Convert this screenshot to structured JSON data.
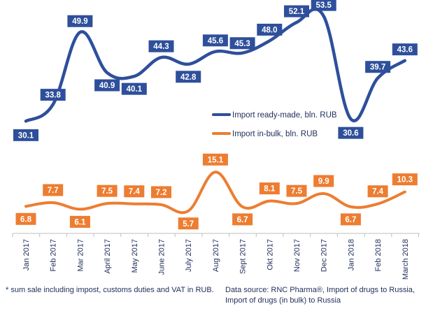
{
  "chart_data": {
    "type": "line",
    "categories": [
      "Jan 2017",
      "Feb 2017",
      "Mar 2017",
      "April 2017",
      "May 2017",
      "June 2017",
      "July 2017",
      "Aug 2017",
      "Sept 2017",
      "Okt 2017",
      "Nov 2017",
      "Dec 2017",
      "Jan 2018",
      "Feb 2018",
      "March 2018"
    ],
    "series": [
      {
        "name": "Import ready-made, bln. RUB",
        "color": "#2e4f9b",
        "values": [
          30.1,
          33.8,
          49.9,
          40.9,
          40.1,
          44.3,
          42.8,
          45.6,
          45.3,
          48.0,
          52.1,
          53.5,
          30.6,
          39.7,
          43.6
        ],
        "labels": [
          "30.1",
          "33.8",
          "49.9",
          "40.9",
          "40.1",
          "44.3",
          "42.8",
          "45.6",
          "45.3",
          "48.0",
          "52.1",
          "53.5",
          "30.6",
          "39.7",
          "43.6"
        ]
      },
      {
        "name": "Import in-bulk, bln. RUB",
        "color": "#ed7d31",
        "values": [
          6.8,
          7.7,
          6.1,
          7.5,
          7.4,
          7.2,
          5.7,
          15.1,
          6.7,
          8.1,
          7.5,
          9.9,
          6.7,
          7.4,
          10.3
        ],
        "labels": [
          "6.8",
          "7.7",
          "6.1",
          "7.5",
          "7.4",
          "7.2",
          "5.7",
          "15.1",
          "6.7",
          "8.1",
          "7.5",
          "9.9",
          "6.7",
          "7.4",
          "10.3"
        ]
      }
    ],
    "legend_position": "right",
    "grid": false
  },
  "footnotes": {
    "left": "* sum sale including impost, customs duties and VAT in RUB.",
    "right": "Data source: RNC Pharma®, Import of drugs to Russia, Import of drugs (in bulk) to Russia"
  }
}
